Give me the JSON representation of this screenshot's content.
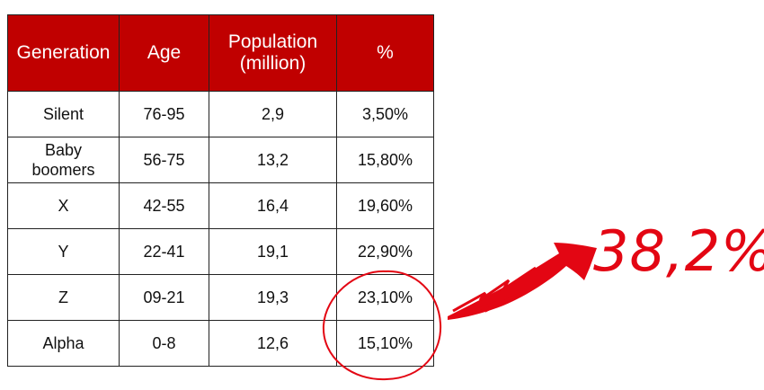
{
  "chart_data": {
    "type": "table",
    "columns": [
      "Generation",
      "Age",
      "Population (million)",
      "%"
    ],
    "rows": [
      {
        "generation": "Silent",
        "age": "76-95",
        "population": "2,9",
        "percent": "3,50%"
      },
      {
        "generation": "Baby boomers",
        "age": "56-75",
        "population": "13,2",
        "percent": "15,80%"
      },
      {
        "generation": "X",
        "age": "42-55",
        "population": "16,4",
        "percent": "19,60%"
      },
      {
        "generation": "Y",
        "age": "22-41",
        "population": "19,1",
        "percent": "22,90%"
      },
      {
        "generation": "Z",
        "age": "09-21",
        "population": "19,3",
        "percent": "23,10%"
      },
      {
        "generation": "Alpha",
        "age": "0-8",
        "population": "12,6",
        "percent": "15,10%"
      }
    ],
    "annotation": {
      "text": "38,2%",
      "circled_rows": [
        "Z",
        "Alpha"
      ]
    }
  },
  "colors": {
    "header_bg": "#c00000",
    "header_text": "#ffffff",
    "annotation": "#e30613"
  }
}
